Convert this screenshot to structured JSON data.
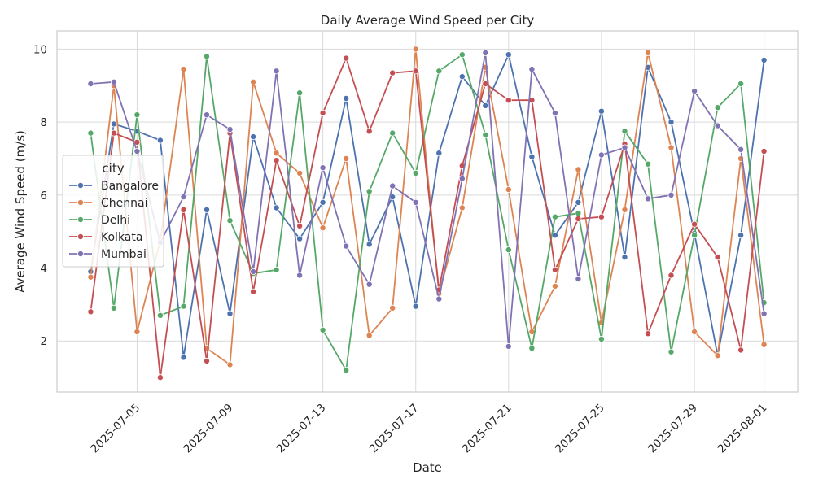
{
  "chart_data": {
    "type": "line",
    "title": "Daily Average Wind Speed per City",
    "xlabel": "Date",
    "ylabel": "Average Wind Speed (m/s)",
    "ylim": [
      0.6,
      10.5
    ],
    "yticks": [
      2,
      4,
      6,
      8,
      10
    ],
    "xticks": [
      "2025-07-05",
      "2025-07-09",
      "2025-07-13",
      "2025-07-17",
      "2025-07-21",
      "2025-07-25",
      "2025-07-29",
      "2025-08-01"
    ],
    "x": [
      "2025-07-03",
      "2025-07-04",
      "2025-07-05",
      "2025-07-06",
      "2025-07-07",
      "2025-07-08",
      "2025-07-09",
      "2025-07-10",
      "2025-07-11",
      "2025-07-12",
      "2025-07-13",
      "2025-07-14",
      "2025-07-15",
      "2025-07-16",
      "2025-07-17",
      "2025-07-18",
      "2025-07-19",
      "2025-07-20",
      "2025-07-21",
      "2025-07-22",
      "2025-07-23",
      "2025-07-24",
      "2025-07-25",
      "2025-07-26",
      "2025-07-27",
      "2025-07-28",
      "2025-07-29",
      "2025-07-30",
      "2025-07-31",
      "2025-08-01"
    ],
    "grid": true,
    "legend": {
      "title": "city",
      "position": "center-left"
    },
    "series": [
      {
        "name": "Bangalore",
        "color": "#4c72b0",
        "values": [
          3.9,
          7.95,
          7.75,
          7.5,
          1.55,
          5.6,
          2.75,
          7.6,
          5.65,
          4.8,
          5.8,
          8.65,
          4.65,
          5.95,
          2.95,
          7.15,
          9.25,
          8.45,
          9.85,
          7.05,
          4.9,
          5.8,
          8.3,
          4.3,
          9.5,
          8.0,
          4.95,
          1.6,
          4.9,
          9.7
        ]
      },
      {
        "name": "Chennai",
        "color": "#dd8452",
        "values": [
          3.75,
          9.0,
          2.25,
          4.75,
          9.45,
          1.8,
          1.35,
          9.1,
          7.15,
          6.6,
          5.1,
          7.0,
          2.15,
          2.9,
          10.0,
          3.3,
          5.65,
          9.5,
          6.15,
          2.25,
          3.5,
          6.7,
          2.5,
          5.6,
          9.9,
          7.3,
          2.25,
          1.6,
          7.0,
          1.9
        ]
      },
      {
        "name": "Delhi",
        "color": "#55a868",
        "values": [
          7.7,
          2.9,
          8.2,
          2.7,
          2.95,
          9.8,
          5.3,
          3.85,
          3.95,
          8.8,
          2.3,
          1.2,
          6.1,
          7.7,
          6.6,
          9.4,
          9.85,
          7.65,
          4.5,
          1.8,
          5.4,
          5.5,
          2.05,
          7.75,
          6.85,
          1.7,
          4.9,
          8.4,
          9.05,
          3.05
        ]
      },
      {
        "name": "Kolkata",
        "color": "#c44e52",
        "values": [
          2.8,
          7.7,
          7.45,
          1.0,
          5.6,
          1.45,
          7.7,
          3.35,
          6.95,
          5.15,
          8.25,
          9.75,
          7.75,
          9.35,
          9.4,
          3.4,
          6.8,
          9.05,
          8.6,
          8.6,
          3.95,
          5.35,
          5.4,
          7.4,
          2.2,
          3.8,
          5.2,
          4.3,
          1.75,
          7.2
        ]
      },
      {
        "name": "Mumbai",
        "color": "#8172b3",
        "values": [
          9.05,
          9.1,
          7.2,
          4.7,
          5.95,
          8.2,
          7.8,
          3.9,
          9.4,
          3.8,
          6.75,
          4.6,
          3.55,
          6.25,
          5.8,
          3.15,
          6.45,
          9.9,
          1.85,
          9.45,
          8.25,
          3.7,
          7.1,
          7.3,
          5.9,
          6.0,
          8.85,
          7.9,
          7.25,
          2.75
        ]
      }
    ]
  }
}
